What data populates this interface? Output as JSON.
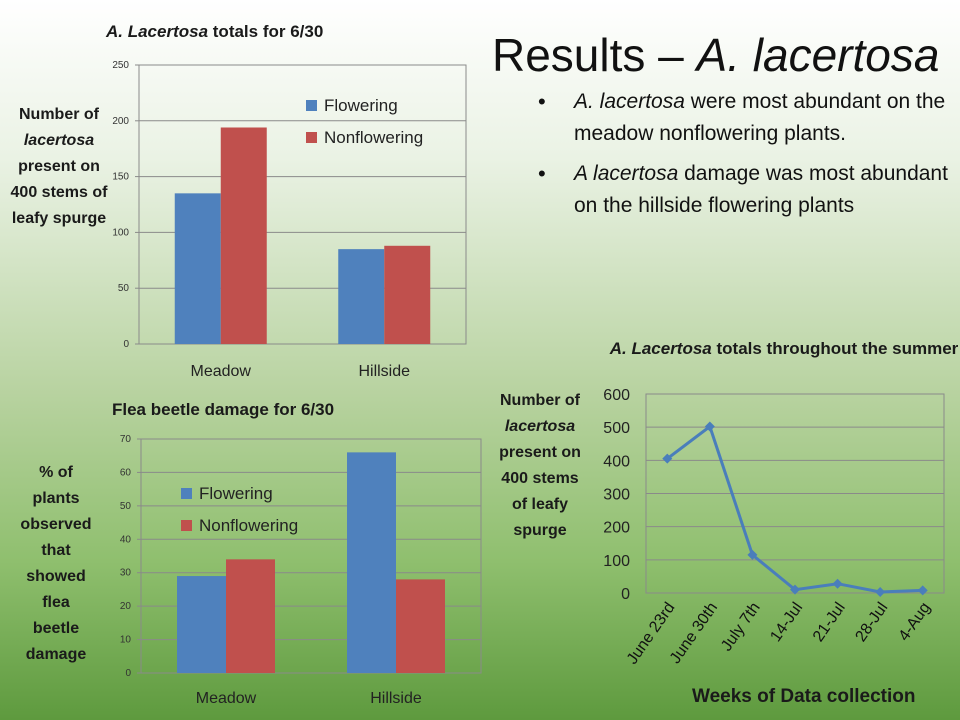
{
  "slide": {
    "title_prefix": "Results – ",
    "title_species": "A. lacertosa",
    "bullets": [
      {
        "italic": "A. lacertosa",
        "text": " were most abundant on the meadow nonflowering plants."
      },
      {
        "italic": "A lacertosa",
        "text": " damage was most abundant on the hillside flowering plants"
      }
    ]
  },
  "chart_data": [
    {
      "type": "bar",
      "title_italic": "A. Lacertosa",
      "title_rest": " totals for 6/30",
      "ylabel_parts": [
        "Number of",
        "lacertosa",
        "present on 400 stems of leafy spurge"
      ],
      "categories": [
        "Meadow",
        "Hillside"
      ],
      "series": [
        {
          "name": "Flowering",
          "values": [
            135,
            85
          ],
          "color": "#4f81bd"
        },
        {
          "name": "Nonflowering",
          "values": [
            194,
            88
          ],
          "color": "#c0504d"
        }
      ],
      "ylim": [
        0,
        250
      ],
      "yticks": [
        0,
        50,
        100,
        150,
        200,
        250
      ],
      "grid": true,
      "legend": "top-right"
    },
    {
      "type": "bar",
      "title": "Flea beetle damage for 6/30",
      "ylabel": "% of plants observed that showed flea beetle damage",
      "categories": [
        "Meadow",
        "Hillside"
      ],
      "series": [
        {
          "name": "Flowering",
          "values": [
            29,
            66
          ],
          "color": "#4f81bd"
        },
        {
          "name": "Nonflowering",
          "values": [
            34,
            28
          ],
          "color": "#c0504d"
        }
      ],
      "ylim": [
        0,
        70
      ],
      "yticks": [
        0,
        10,
        20,
        30,
        40,
        50,
        60,
        70
      ],
      "grid": true,
      "legend": "top-left"
    },
    {
      "type": "line",
      "title_italic": "A. Lacertosa",
      "title_rest": " totals throughout the summer",
      "ylabel_parts": [
        "Number of",
        "lacertosa",
        "present on 400 stems of leafy spurge"
      ],
      "xlabel": "Weeks of Data collection",
      "x": [
        "June 23rd",
        "June 30th",
        "July 7th",
        "14-Jul",
        "21-Jul",
        "28-Jul",
        "4-Aug"
      ],
      "series": [
        {
          "values": [
            405,
            502,
            115,
            10,
            28,
            3,
            8
          ],
          "color": "#4a7ebb"
        }
      ],
      "ylim": [
        0,
        600
      ],
      "yticks": [
        0,
        100,
        200,
        300,
        400,
        500,
        600
      ],
      "grid": true
    }
  ]
}
